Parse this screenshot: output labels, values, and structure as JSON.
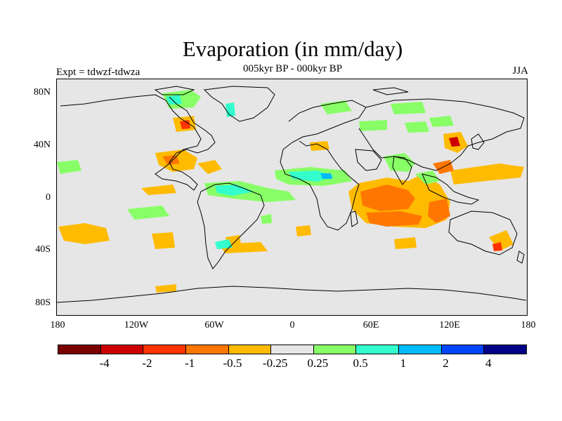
{
  "title": "Evaporation (in mm/day)",
  "subtitle": "005kyr BP - 000kyr BP",
  "left_label": "Expt = tdwzf-tdwza",
  "right_label": "JJA",
  "axes": {
    "y_ticks": [
      "80N",
      "40N",
      "0",
      "40S",
      "80S"
    ],
    "x_ticks": [
      "180",
      "120W",
      "60W",
      "0",
      "60E",
      "120E",
      "180"
    ]
  },
  "colorbar": {
    "colors": [
      "#7a0000",
      "#cc0000",
      "#ff3300",
      "#ff7700",
      "#ffbb00",
      "#e6e6e6",
      "#88ff66",
      "#33ffcc",
      "#00bbff",
      "#0044ff",
      "#000088"
    ],
    "labels": [
      "-4",
      "-2",
      "-1",
      "-0.5",
      "-0.25",
      "0.25",
      "0.5",
      "1",
      "2",
      "4"
    ]
  },
  "map": {
    "background": "#e6e6e6",
    "coastline_color": "#000000"
  }
}
